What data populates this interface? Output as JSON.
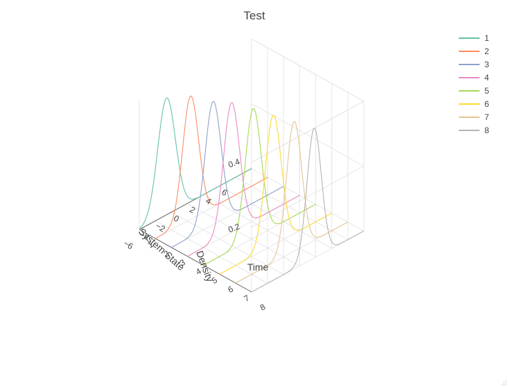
{
  "chart_data": {
    "type": "line",
    "title": "Test",
    "axes": {
      "x": {
        "title": "System State",
        "range": [
          -6,
          8
        ],
        "ticks": [
          -6,
          -4,
          -2,
          0,
          2,
          4,
          6
        ]
      },
      "y": {
        "title": "Time",
        "range": [
          1,
          8
        ],
        "ticks": [
          1,
          2,
          3,
          4,
          5,
          6,
          7,
          8
        ]
      },
      "z": {
        "title": "Density",
        "range": [
          0,
          0.4
        ],
        "ticks": [
          0.2,
          0.4
        ]
      }
    },
    "series": [
      {
        "name": "1",
        "time": 1,
        "mean": -2.6,
        "sd": 1.1,
        "peak": 0.36,
        "color": "#66c2a5"
      },
      {
        "name": "2",
        "time": 2,
        "mean": -1.6,
        "sd": 1.0,
        "peak": 0.38,
        "color": "#fc8d62"
      },
      {
        "name": "3",
        "time": 3,
        "mean": -0.8,
        "sd": 1.0,
        "peak": 0.38,
        "color": "#8da0cb"
      },
      {
        "name": "4",
        "time": 4,
        "mean": -0.5,
        "sd": 1.0,
        "peak": 0.4,
        "color": "#e78ac3"
      },
      {
        "name": "5",
        "time": 5,
        "mean": 0.2,
        "sd": 1.0,
        "peak": 0.4,
        "color": "#a6d854"
      },
      {
        "name": "6",
        "time": 6,
        "mean": 0.7,
        "sd": 1.0,
        "peak": 0.4,
        "color": "#ffd92f"
      },
      {
        "name": "7",
        "time": 7,
        "mean": 1.3,
        "sd": 0.95,
        "peak": 0.4,
        "color": "#e5c494"
      },
      {
        "name": "8",
        "time": 8,
        "mean": 1.8,
        "sd": 0.9,
        "peak": 0.4,
        "color": "#b3b3b3"
      }
    ],
    "legend_position": "top-right",
    "grid": true
  }
}
